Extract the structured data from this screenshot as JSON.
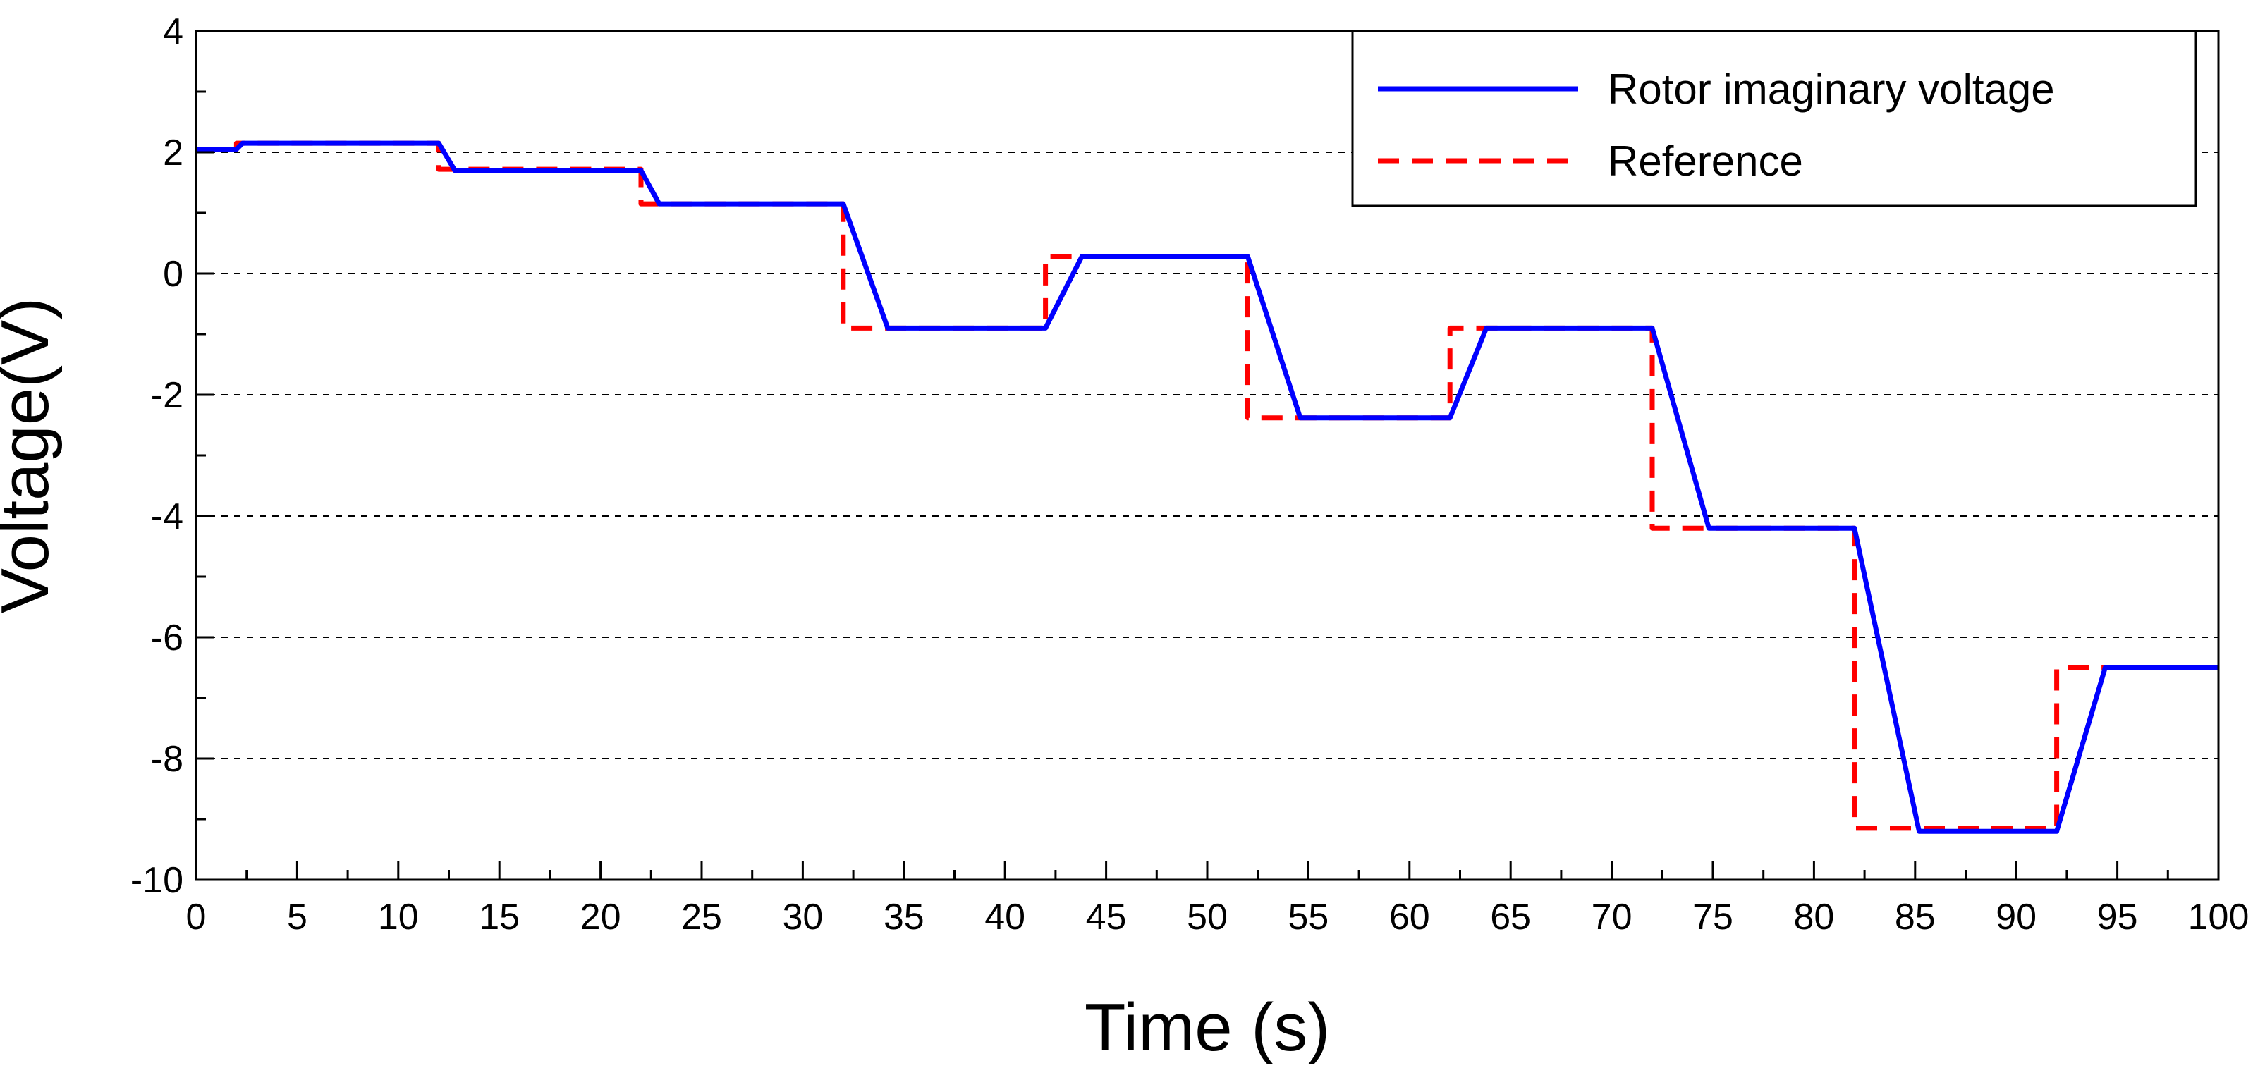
{
  "chart_data": {
    "type": "line",
    "title": "",
    "xlabel": "Time (s)",
    "ylabel": "Voltage(V)",
    "xlim": [
      0,
      100
    ],
    "ylim": [
      -10,
      4
    ],
    "xticks": [
      0,
      5,
      10,
      15,
      20,
      25,
      30,
      35,
      40,
      45,
      50,
      55,
      60,
      65,
      70,
      75,
      80,
      85,
      90,
      95,
      100
    ],
    "yticks": [
      -10,
      -8,
      -6,
      -4,
      -2,
      0,
      2,
      4
    ],
    "grid": "horizontal dashed",
    "legend_position": "top-right",
    "series": [
      {
        "name": "Rotor imaginary voltage",
        "color": "#0000ff",
        "style": "solid",
        "x": [
          0,
          2,
          2.3,
          5,
          12,
          12.8,
          22,
          22.9,
          32,
          34.2,
          42,
          43.8,
          52,
          54.6,
          62,
          63.8,
          72,
          74.8,
          82,
          85.2,
          92,
          94.4,
          100
        ],
        "y": [
          2.05,
          2.05,
          2.15,
          2.15,
          2.15,
          1.7,
          1.7,
          1.15,
          1.15,
          -0.9,
          -0.9,
          0.28,
          0.28,
          -2.38,
          -2.38,
          -0.9,
          -0.9,
          -4.2,
          -4.2,
          -9.2,
          -9.2,
          -6.5,
          -6.5
        ]
      },
      {
        "name": "Reference",
        "color": "#ff0000",
        "style": "dashed",
        "x": [
          0,
          2,
          2,
          12,
          12,
          22,
          22,
          32,
          32,
          42,
          42,
          52,
          52,
          62,
          62,
          72,
          72,
          82,
          82,
          92,
          92,
          100
        ],
        "y": [
          2.05,
          2.05,
          2.15,
          2.15,
          1.72,
          1.72,
          1.15,
          1.15,
          -0.9,
          -0.9,
          0.28,
          0.28,
          -2.38,
          -2.38,
          -0.9,
          -0.9,
          -4.2,
          -4.2,
          -9.15,
          -9.15,
          -6.5,
          -6.5
        ]
      }
    ]
  }
}
